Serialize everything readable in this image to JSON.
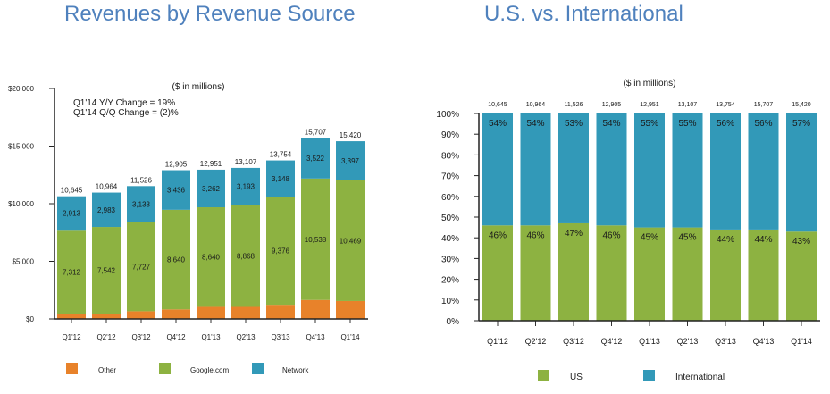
{
  "page": {
    "left_title": "Revenues by Revenue Source",
    "right_title": "U.S. vs. International"
  },
  "chart_data": [
    {
      "type": "bar",
      "stacked": true,
      "title": "Revenues by Revenue Source",
      "subtitle": "($ in millions)",
      "annotations": [
        "Q1'14 Y/Y Change = 19%",
        "Q1'14 Q/Q Change = (2)%"
      ],
      "xlabel": "",
      "ylabel": "",
      "ylim": [
        0,
        20000
      ],
      "yticks": [
        0,
        5000,
        10000,
        15000,
        20000
      ],
      "ytick_labels": [
        "$0",
        "$5,000",
        "$10,000",
        "$15,000",
        "$20,000"
      ],
      "grid": false,
      "legend_position": "bottom",
      "categories": [
        "Q1'12",
        "Q2'12",
        "Q3'12",
        "Q4'12",
        "Q1'13",
        "Q2'13",
        "Q3'13",
        "Q4'13",
        "Q1'14"
      ],
      "totals": [
        "10,645",
        "10,964",
        "11,526",
        "12,905",
        "12,951",
        "13,107",
        "13,754",
        "15,707",
        "15,420"
      ],
      "series": [
        {
          "name": "Other",
          "color": "#e8822a",
          "values": [
            420,
            439,
            666,
            829,
            1049,
            1046,
            1230,
            1647,
            1554
          ],
          "labels": [
            "420",
            "439",
            "666",
            "829",
            "1,049",
            "1,046",
            "1,230",
            "1,647",
            "1,554"
          ]
        },
        {
          "name": "Google.com",
          "color": "#8db241",
          "values": [
            7312,
            7542,
            7727,
            8640,
            8640,
            8868,
            9376,
            10538,
            10469
          ],
          "labels": [
            "7,312",
            "7,542",
            "7,727",
            "8,640",
            "8,640",
            "8,868",
            "9,376",
            "10,538",
            "10,469"
          ]
        },
        {
          "name": "Network",
          "color": "#3299b8",
          "values": [
            2913,
            2983,
            3133,
            3436,
            3262,
            3193,
            3148,
            3522,
            3397
          ],
          "labels": [
            "2,913",
            "2,983",
            "3,133",
            "3,436",
            "3,262",
            "3,193",
            "3,148",
            "3,522",
            "3,397"
          ]
        }
      ]
    },
    {
      "type": "bar",
      "stacked": true,
      "percent": true,
      "title": "U.S. vs. International",
      "subtitle": "($ in millions)",
      "xlabel": "",
      "ylabel": "",
      "ylim": [
        0,
        100
      ],
      "yticks": [
        0,
        10,
        20,
        30,
        40,
        50,
        60,
        70,
        80,
        90,
        100
      ],
      "ytick_labels": [
        "0%",
        "10%",
        "20%",
        "30%",
        "40%",
        "50%",
        "60%",
        "70%",
        "80%",
        "90%",
        "100%"
      ],
      "grid": false,
      "legend_position": "bottom",
      "categories": [
        "Q1'12",
        "Q2'12",
        "Q3'12",
        "Q4'12",
        "Q1'13",
        "Q2'13",
        "Q3'13",
        "Q4'13",
        "Q1'14"
      ],
      "totals": [
        "10,645",
        "10,964",
        "11,526",
        "12,905",
        "12,951",
        "13,107",
        "13,754",
        "15,707",
        "15,420"
      ],
      "series": [
        {
          "name": "US",
          "color": "#8db241",
          "values": [
            46,
            46,
            47,
            46,
            45,
            45,
            44,
            44,
            43
          ]
        },
        {
          "name": "International",
          "color": "#3299b8",
          "values": [
            54,
            54,
            53,
            54,
            55,
            55,
            56,
            56,
            57
          ]
        }
      ]
    }
  ]
}
